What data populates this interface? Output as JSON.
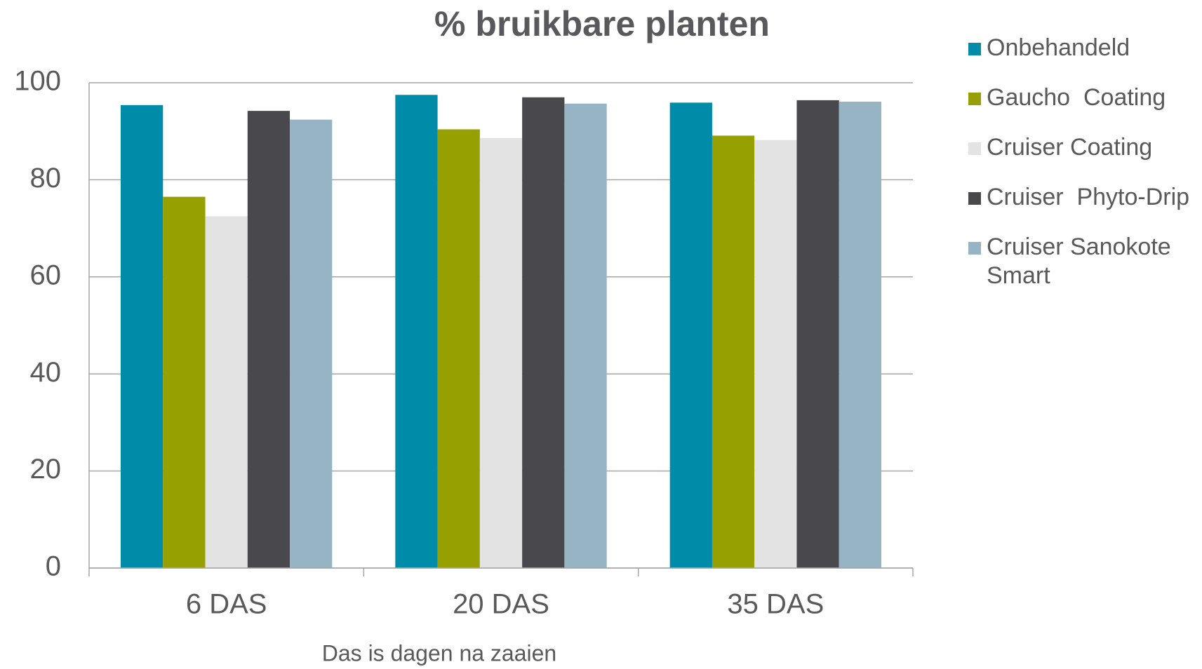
{
  "chart_data": {
    "type": "bar",
    "title": "% bruikbare planten",
    "x_label": "Das is dagen na zaaien",
    "categories": [
      "6 DAS",
      "20 DAS",
      "35 DAS"
    ],
    "series": [
      {
        "name": "Onbehandeld",
        "color": "#008ba8",
        "values": [
          95.4,
          97.5,
          95.9
        ]
      },
      {
        "name": "Gaucho  Coating",
        "color": "#96a000",
        "values": [
          76.5,
          90.4,
          89.1
        ]
      },
      {
        "name": "Cruiser Coating",
        "color": "#e3e3e3",
        "values": [
          72.5,
          88.6,
          88.2
        ]
      },
      {
        "name": "Cruiser  Phyto-Drip",
        "color": "#48484d",
        "values": [
          94.2,
          97.0,
          96.4
        ]
      },
      {
        "name": "Cruiser Sanokote Smart",
        "color": "#96b4c3",
        "values": [
          92.4,
          95.7,
          96.1
        ]
      }
    ],
    "ylim": [
      0,
      100
    ],
    "yticks": [
      0,
      20,
      40,
      60,
      80,
      100
    ],
    "grid": true,
    "legend": "right"
  }
}
